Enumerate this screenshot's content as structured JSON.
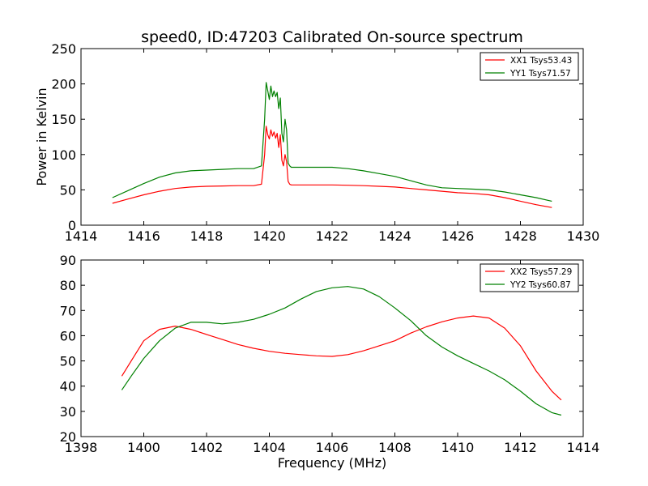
{
  "chart_data": [
    {
      "type": "line",
      "title": "speed0, ID:47203 Calibrated On-source spectrum",
      "xlabel": "",
      "ylabel": "Power in Kelvin",
      "xlim": [
        1414,
        1430
      ],
      "ylim": [
        0,
        250
      ],
      "xticks": [
        "1414",
        "1416",
        "1418",
        "1420",
        "1422",
        "1424",
        "1426",
        "1428",
        "1430"
      ],
      "yticks": [
        "0",
        "50",
        "100",
        "150",
        "200",
        "250"
      ],
      "legend_position": "upper right",
      "series": [
        {
          "name": "XX1 Tsys53.43",
          "color": "#ff0000",
          "x": [
            1415.0,
            1415.5,
            1416.0,
            1416.5,
            1417.0,
            1417.5,
            1418.0,
            1418.5,
            1419.0,
            1419.5,
            1419.75,
            1419.85,
            1419.9,
            1419.95,
            1420.0,
            1420.05,
            1420.1,
            1420.15,
            1420.2,
            1420.25,
            1420.3,
            1420.35,
            1420.4,
            1420.45,
            1420.5,
            1420.55,
            1420.6,
            1420.65,
            1420.7,
            1421.0,
            1421.5,
            1422.0,
            1422.5,
            1423.0,
            1423.5,
            1424.0,
            1424.5,
            1425.0,
            1425.5,
            1426.0,
            1426.5,
            1427.0,
            1427.5,
            1428.0,
            1428.5,
            1429.0
          ],
          "y": [
            31,
            37,
            43,
            48,
            52,
            54,
            55,
            55.5,
            56,
            56,
            58,
            100,
            140,
            128,
            122,
            135,
            126,
            132,
            123,
            130,
            110,
            128,
            92,
            84,
            100,
            90,
            62,
            58,
            57,
            57,
            57,
            57,
            56.5,
            56,
            55,
            54,
            52,
            50,
            48,
            46,
            45,
            43,
            39,
            34,
            29,
            25
          ]
        },
        {
          "name": "YY1 Tsys71.57",
          "color": "#008000",
          "x": [
            1415.0,
            1415.5,
            1416.0,
            1416.5,
            1417.0,
            1417.5,
            1418.0,
            1418.5,
            1419.0,
            1419.5,
            1419.75,
            1419.85,
            1419.9,
            1419.95,
            1420.0,
            1420.05,
            1420.1,
            1420.15,
            1420.2,
            1420.25,
            1420.3,
            1420.35,
            1420.4,
            1420.45,
            1420.5,
            1420.55,
            1420.6,
            1420.65,
            1420.7,
            1421.0,
            1421.5,
            1422.0,
            1422.5,
            1423.0,
            1423.5,
            1424.0,
            1424.5,
            1425.0,
            1425.5,
            1426.0,
            1426.5,
            1427.0,
            1427.5,
            1428.0,
            1428.5,
            1429.0
          ],
          "y": [
            39,
            49,
            59,
            68,
            74,
            77,
            78,
            79,
            80,
            80,
            84,
            150,
            202,
            190,
            178,
            197,
            182,
            190,
            182,
            188,
            165,
            180,
            130,
            118,
            150,
            135,
            88,
            84,
            82,
            82,
            82,
            82,
            80,
            77,
            73,
            69,
            63,
            57,
            53,
            52,
            51,
            50,
            47,
            43,
            39,
            34
          ]
        }
      ]
    },
    {
      "type": "line",
      "title": "",
      "xlabel": "Frequency (MHz)",
      "ylabel": "",
      "xlim": [
        1398,
        1414
      ],
      "ylim": [
        20,
        90
      ],
      "xticks": [
        "1398",
        "1400",
        "1402",
        "1404",
        "1406",
        "1408",
        "1410",
        "1412",
        "1414"
      ],
      "yticks": [
        "20",
        "30",
        "40",
        "50",
        "60",
        "70",
        "80",
        "90"
      ],
      "legend_position": "upper right",
      "series": [
        {
          "name": "XX2 Tsys57.29",
          "color": "#ff0000",
          "x": [
            1399.3,
            1399.6,
            1400.0,
            1400.5,
            1401.0,
            1401.5,
            1402.0,
            1402.5,
            1403.0,
            1403.5,
            1404.0,
            1404.5,
            1405.0,
            1405.5,
            1406.0,
            1406.5,
            1407.0,
            1407.5,
            1408.0,
            1408.5,
            1409.0,
            1409.5,
            1410.0,
            1410.5,
            1411.0,
            1411.5,
            1412.0,
            1412.5,
            1413.0,
            1413.3
          ],
          "y": [
            44,
            50,
            58,
            62.5,
            63.8,
            62.5,
            60.5,
            58.5,
            56.5,
            55,
            53.8,
            53,
            52.5,
            52,
            51.8,
            52.5,
            54,
            56,
            58,
            61,
            63.5,
            65.5,
            67,
            67.8,
            67,
            63,
            56,
            46,
            38,
            34.5
          ]
        },
        {
          "name": "YY2 Tsys60.87",
          "color": "#008000",
          "x": [
            1399.3,
            1399.6,
            1400.0,
            1400.5,
            1401.0,
            1401.5,
            1402.0,
            1402.5,
            1403.0,
            1403.5,
            1404.0,
            1404.5,
            1405.0,
            1405.5,
            1406.0,
            1406.5,
            1407.0,
            1407.5,
            1408.0,
            1408.5,
            1409.0,
            1409.5,
            1410.0,
            1410.5,
            1411.0,
            1411.5,
            1412.0,
            1412.5,
            1413.0,
            1413.3
          ],
          "y": [
            38.5,
            44,
            51,
            58,
            63,
            65.3,
            65.3,
            64.7,
            65.3,
            66.5,
            68.5,
            71,
            74.5,
            77.5,
            79,
            79.5,
            78.5,
            75.5,
            71,
            66,
            60,
            55.5,
            52,
            49,
            46,
            42.5,
            38,
            33,
            29.5,
            28.5
          ]
        }
      ]
    }
  ]
}
